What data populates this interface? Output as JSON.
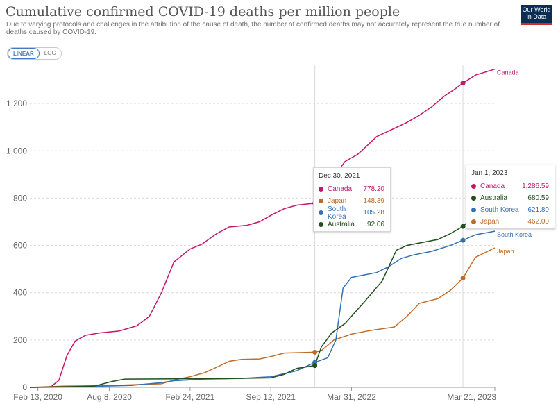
{
  "header": {
    "title": "Cumulative confirmed COVID-19 deaths per million people",
    "subtitle": "Due to varying protocols and challenges in the attribution of the cause of death, the number of confirmed deaths may not accurately represent the true number of deaths caused by COVID-19.",
    "logo_line1": "Our World",
    "logo_line2": "in Data"
  },
  "controls": {
    "linear_label": "LINEAR",
    "log_label": "LOG"
  },
  "colors": {
    "Canada": "#c2186b",
    "Japan": "#c06b28",
    "South Korea": "#3371b4",
    "Australia": "#234f1e"
  },
  "chart_data": {
    "type": "line",
    "title": "Cumulative confirmed COVID-19 deaths per million people",
    "x_tick_labels": [
      "Feb 13, 2020",
      "Aug 8, 2020",
      "Feb 24, 2021",
      "Sep 12, 2021",
      "Mar 31, 2022",
      "Mar 21, 2023"
    ],
    "x_ticks": [
      "2020-02-13",
      "2020-08-08",
      "2021-02-24",
      "2021-09-12",
      "2022-03-31",
      "2023-03-21"
    ],
    "xlim": [
      "2020-01-24",
      "2023-03-21"
    ],
    "ylim": [
      0,
      1350
    ],
    "y_ticks": [
      0,
      200,
      400,
      600,
      800,
      1000,
      1200
    ],
    "y_tick_labels": [
      "0",
      "200",
      "400",
      "600",
      "800",
      "1,000",
      "1,200"
    ],
    "grid": "horizontal dashed",
    "legend": "labels at line ends",
    "series": [
      {
        "name": "Canada",
        "points": [
          [
            "2020-01-24",
            0
          ],
          [
            "2020-03-15",
            1
          ],
          [
            "2020-04-05",
            30
          ],
          [
            "2020-04-25",
            135
          ],
          [
            "2020-05-15",
            195
          ],
          [
            "2020-06-10",
            220
          ],
          [
            "2020-07-15",
            230
          ],
          [
            "2020-09-01",
            238
          ],
          [
            "2020-10-15",
            260
          ],
          [
            "2020-11-15",
            300
          ],
          [
            "2020-12-15",
            400
          ],
          [
            "2021-01-15",
            530
          ],
          [
            "2021-02-24",
            585
          ],
          [
            "2021-03-25",
            605
          ],
          [
            "2021-05-01",
            650
          ],
          [
            "2021-06-01",
            678
          ],
          [
            "2021-07-15",
            685
          ],
          [
            "2021-08-15",
            700
          ],
          [
            "2021-09-15",
            730
          ],
          [
            "2021-10-15",
            755
          ],
          [
            "2021-11-15",
            770
          ],
          [
            "2021-12-30",
            778.2
          ],
          [
            "2022-01-15",
            820
          ],
          [
            "2022-02-15",
            890
          ],
          [
            "2022-03-15",
            955
          ],
          [
            "2022-04-15",
            985
          ],
          [
            "2022-05-01",
            1010
          ],
          [
            "2022-06-01",
            1060
          ],
          [
            "2022-06-20",
            1075
          ],
          [
            "2022-07-15",
            1095
          ],
          [
            "2022-08-15",
            1120
          ],
          [
            "2022-09-15",
            1150
          ],
          [
            "2022-10-15",
            1185
          ],
          [
            "2022-11-15",
            1230
          ],
          [
            "2022-12-15",
            1265
          ],
          [
            "2023-01-01",
            1286.59
          ],
          [
            "2023-02-01",
            1320
          ],
          [
            "2023-03-21",
            1345
          ]
        ]
      },
      {
        "name": "Japan",
        "points": [
          [
            "2020-01-24",
            0
          ],
          [
            "2020-04-15",
            5
          ],
          [
            "2020-08-15",
            8
          ],
          [
            "2020-12-15",
            15
          ],
          [
            "2021-01-25",
            35
          ],
          [
            "2021-02-24",
            45
          ],
          [
            "2021-04-01",
            62
          ],
          [
            "2021-05-01",
            85
          ],
          [
            "2021-06-01",
            110
          ],
          [
            "2021-07-01",
            118
          ],
          [
            "2021-08-15",
            120
          ],
          [
            "2021-09-12",
            130
          ],
          [
            "2021-10-15",
            145
          ],
          [
            "2021-12-30",
            148.39
          ],
          [
            "2022-01-15",
            155
          ],
          [
            "2022-02-15",
            200
          ],
          [
            "2022-03-31",
            225
          ],
          [
            "2022-05-15",
            240
          ],
          [
            "2022-07-15",
            255
          ],
          [
            "2022-08-15",
            300
          ],
          [
            "2022-09-15",
            355
          ],
          [
            "2022-10-31",
            375
          ],
          [
            "2022-12-01",
            410
          ],
          [
            "2023-01-01",
            462
          ],
          [
            "2023-02-01",
            550
          ],
          [
            "2023-03-21",
            590
          ]
        ]
      },
      {
        "name": "South Korea",
        "points": [
          [
            "2020-01-24",
            0
          ],
          [
            "2020-06-01",
            3
          ],
          [
            "2020-10-01",
            8
          ],
          [
            "2020-12-15",
            20
          ],
          [
            "2021-01-15",
            28
          ],
          [
            "2021-04-01",
            35
          ],
          [
            "2021-07-01",
            38
          ],
          [
            "2021-09-12",
            45
          ],
          [
            "2021-11-15",
            70
          ],
          [
            "2021-12-30",
            105.28
          ],
          [
            "2022-01-31",
            125
          ],
          [
            "2022-02-20",
            200
          ],
          [
            "2022-03-10",
            420
          ],
          [
            "2022-03-31",
            465
          ],
          [
            "2022-05-01",
            475
          ],
          [
            "2022-06-01",
            485
          ],
          [
            "2022-07-01",
            510
          ],
          [
            "2022-08-01",
            545
          ],
          [
            "2022-09-01",
            560
          ],
          [
            "2022-10-15",
            575
          ],
          [
            "2022-12-01",
            600
          ],
          [
            "2023-01-01",
            621.8
          ],
          [
            "2023-02-01",
            645
          ],
          [
            "2023-03-21",
            660
          ]
        ]
      },
      {
        "name": "Australia",
        "points": [
          [
            "2020-01-24",
            0
          ],
          [
            "2020-07-01",
            5
          ],
          [
            "2020-08-15",
            25
          ],
          [
            "2020-09-15",
            35
          ],
          [
            "2021-06-01",
            37
          ],
          [
            "2021-09-12",
            40
          ],
          [
            "2021-10-15",
            55
          ],
          [
            "2021-11-15",
            80
          ],
          [
            "2021-12-30",
            92.06
          ],
          [
            "2022-01-15",
            170
          ],
          [
            "2022-02-10",
            230
          ],
          [
            "2022-03-15",
            270
          ],
          [
            "2022-05-01",
            360
          ],
          [
            "2022-06-15",
            450
          ],
          [
            "2022-07-20",
            580
          ],
          [
            "2022-08-15",
            600
          ],
          [
            "2022-09-15",
            610
          ],
          [
            "2022-10-31",
            625
          ],
          [
            "2022-12-01",
            650
          ],
          [
            "2023-01-01",
            680.59
          ],
          [
            "2023-01-10",
            695
          ]
        ]
      }
    ],
    "end_labels": [
      "Canada",
      "South Korea",
      "Japan"
    ]
  },
  "tooltips": [
    {
      "date": "Dec 30, 2021",
      "rows": [
        {
          "name": "Canada",
          "value": "778.20"
        },
        {
          "name": "Japan",
          "value": "148.39"
        },
        {
          "name": "South Korea",
          "value": "105.28"
        },
        {
          "name": "Australia",
          "value": "92.06"
        }
      ]
    },
    {
      "date": "Jan 1, 2023",
      "rows": [
        {
          "name": "Canada",
          "value": "1,286.59"
        },
        {
          "name": "Australia",
          "value": "680.59"
        },
        {
          "name": "South Korea",
          "value": "621.80"
        },
        {
          "name": "Japan",
          "value": "462.00"
        }
      ]
    }
  ]
}
